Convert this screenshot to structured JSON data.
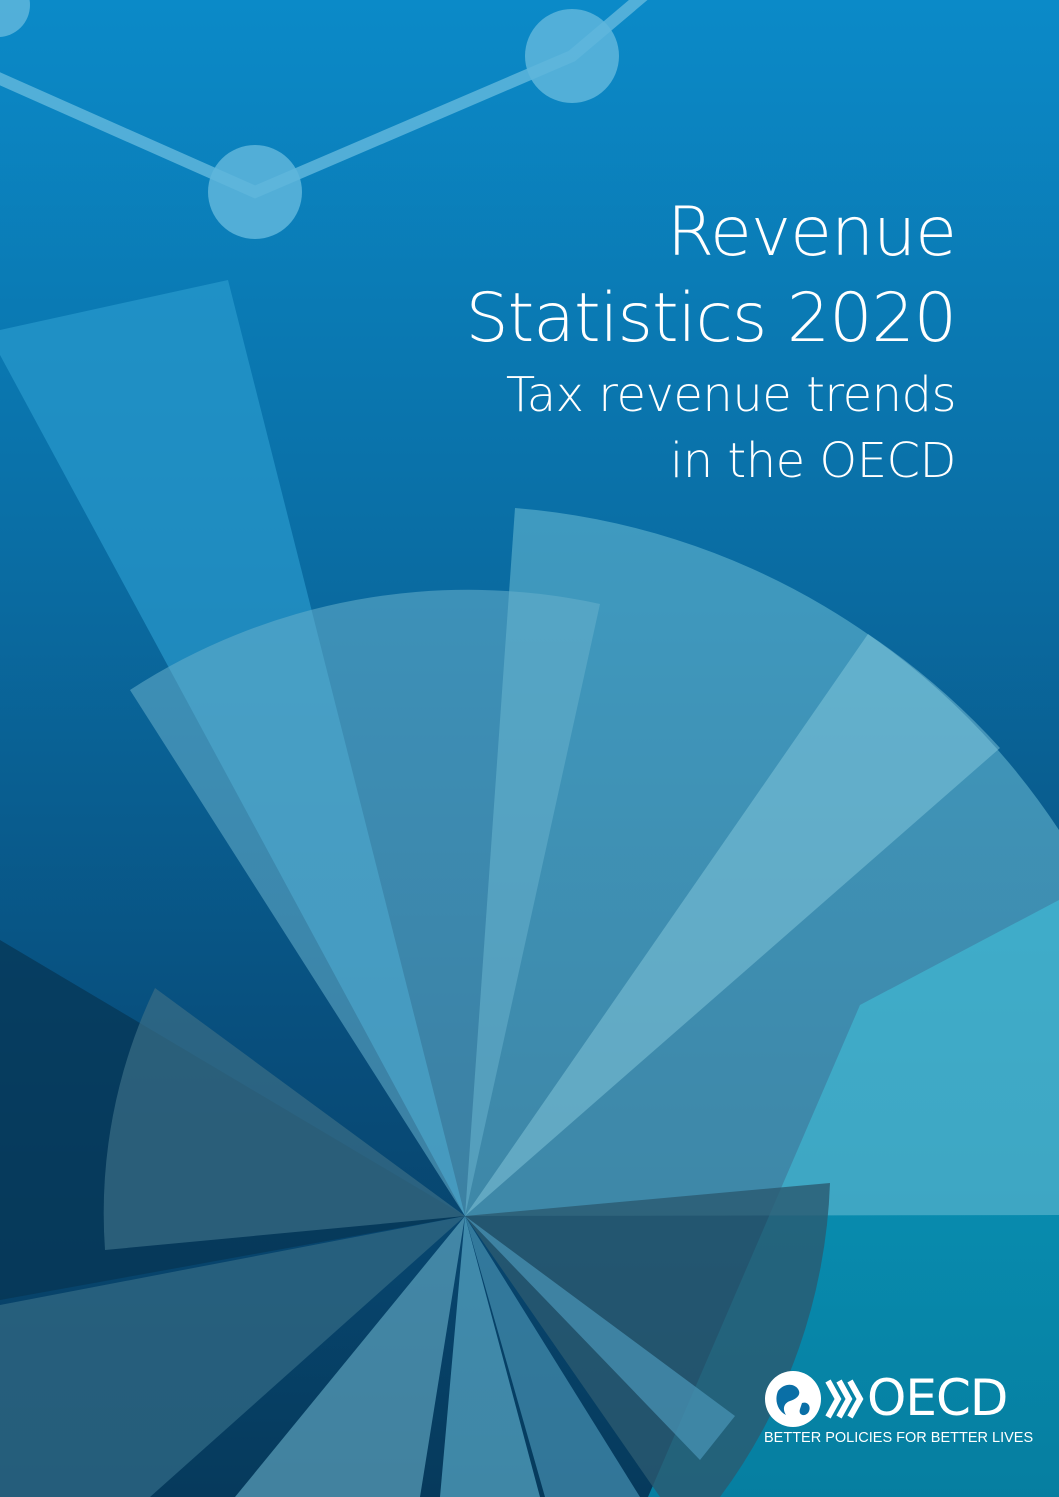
{
  "cover": {
    "title_lines": [
      "Revenue",
      "Statistics 2020"
    ],
    "subtitle_lines": [
      "Tax revenue trends",
      "in the OECD"
    ]
  },
  "publisher": {
    "logo_icon": "oecd-globe-icon",
    "wordmark": "OECD",
    "tagline": "BETTER POLICIES FOR BETTER LIVES"
  },
  "colors": {
    "background_top": "#0b8ac8",
    "background_bottom": "#063a5c",
    "text": "#ffffff"
  }
}
